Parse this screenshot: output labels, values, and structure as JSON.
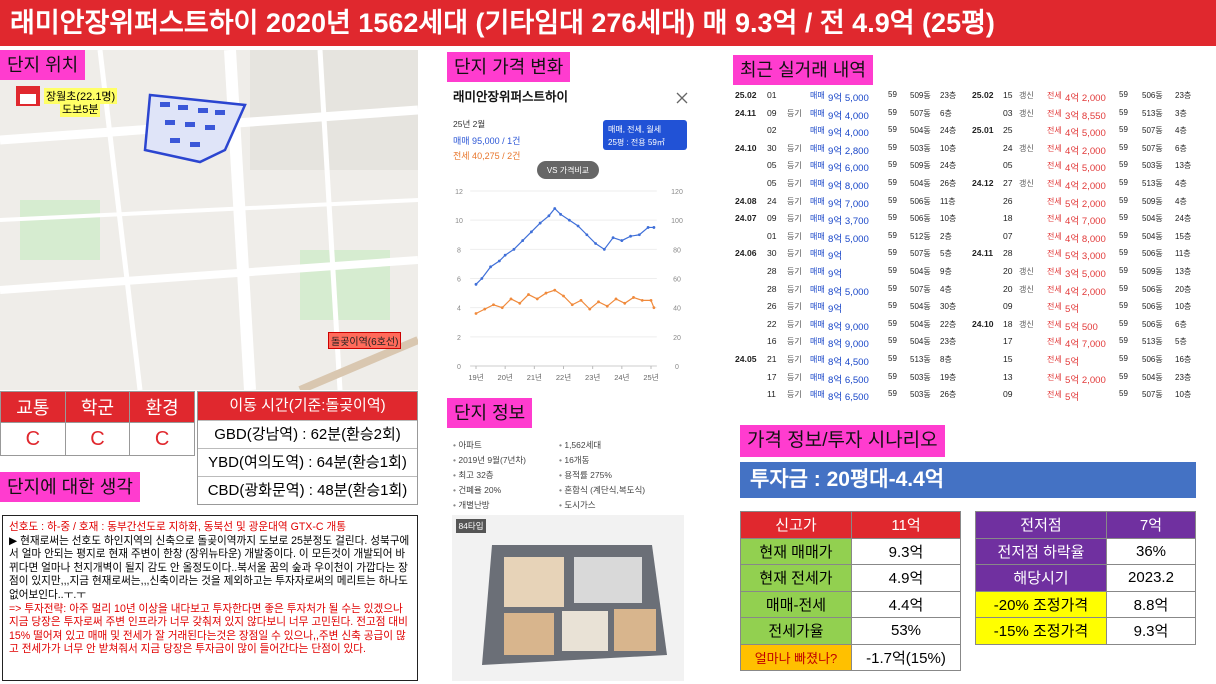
{
  "header": {
    "title": "래미안장위퍼스트하이 2020년 1562세대 (기타임대 276세대) 매 9.3억 / 전 4.9억 (25평)"
  },
  "location": {
    "label": "단지 위치",
    "school": "장월초(22.1명)",
    "walk": "도보5분",
    "station": "돌곶이역(6호선)"
  },
  "grades": {
    "headers": [
      "교통",
      "학군",
      "환경"
    ],
    "values": [
      "C",
      "C",
      "C"
    ]
  },
  "commute": {
    "title": "이동 시간(기준:돌곶이역)",
    "items": [
      "GBD(강남역) : 62분(환승2회)",
      "YBD(여의도역) : 64분(환승1회)",
      "CBD(광화문역) : 48분(환승1회)"
    ]
  },
  "thoughts": {
    "label": "단지에 대한 생각",
    "paragraphs": [
      {
        "text": "선호도 : 하-중 / 호재 : 동부간선도로 지하화, 동북선 및 광운대역 GTX-C 개통",
        "color": "#e00000"
      },
      {
        "text": "▶ 현재로써는 선호도 하인지역의 신축으로 돌곶이역까지 도보로 25분정도 걸린다. 성북구에서 얼마 안되는 평지로 현재 주변이 한창 (장위뉴타운) 개발중이다. 이 모든것이 개발되어 바뀌다면 얼마나 천지개벽이 될지 감도 안 올정도이다..북서울 꿈의 숲과 우이천이 가깝다는 장점이 있지만,,,지금 현재로써는,,,신축이라는 것을 제외하고는 투자자로써의 메리트는 하나도 없어보인다..ㅜ.ㅜ",
        "color": "#000000"
      },
      {
        "text": "=> 투자전략: 아주 멀리 10년 이상을 내다보고 투자한다면 좋은 투자처가 될 수는 있겠으나 지금 당장은 투자로써 주변 인프라가 너무 갖춰져 있지 않다보니 너무 고민된다. 전고점 대비 15% 떨어져 있고 매매 및 전세가 잘 거래된다는것은 장점일 수 있으나,,주변 신축 공급이 많고 전세가가 너무 안 받쳐줘서 지금 당장은 투자금이 많이 들어간다는 단점이 있다.",
        "color": "#e00000"
      }
    ]
  },
  "price_change": {
    "label": "단지 가격 변화",
    "name": "래미안장위퍼스트하이",
    "period": "25년 2월",
    "sale": "매매 95,000 / 1건",
    "jeonse": "전세 40,275 / 2건",
    "filter": "매매, 전세, 월세",
    "size": "25평 : 전용 59㎡",
    "compare": "VS 가격비교"
  },
  "chart_data": {
    "type": "line",
    "xlim": [
      2018.8,
      2025.2
    ],
    "xticks": [
      {
        "value": 2019,
        "label": "19년"
      },
      {
        "value": 2020,
        "label": "20년"
      },
      {
        "value": 2021,
        "label": "21년"
      },
      {
        "value": 2022,
        "label": "22년"
      },
      {
        "value": 2023,
        "label": "23년"
      },
      {
        "value": 2024,
        "label": "24년"
      },
      {
        "value": 2025,
        "label": "25년"
      }
    ],
    "ylim": [
      0,
      12
    ],
    "yticks": [
      0,
      2,
      4,
      6,
      8,
      10,
      12
    ],
    "y2lim": [
      0,
      120
    ],
    "y2ticks": [
      0,
      20,
      40,
      60,
      80,
      100,
      120
    ],
    "grid": true,
    "series": [
      {
        "name": "매매",
        "color": "#3f6fd8",
        "x": [
          2019.0,
          2019.2,
          2019.5,
          2019.8,
          2020.0,
          2020.3,
          2020.6,
          2020.9,
          2021.2,
          2021.5,
          2021.7,
          2021.9,
          2022.2,
          2022.5,
          2022.8,
          2023.1,
          2023.4,
          2023.7,
          2024.0,
          2024.3,
          2024.6,
          2024.9,
          2025.1
        ],
        "values": [
          5.6,
          6.0,
          6.8,
          7.2,
          7.6,
          8.0,
          8.6,
          9.2,
          9.8,
          10.3,
          10.8,
          10.4,
          10.0,
          9.6,
          9.0,
          8.4,
          8.0,
          8.8,
          8.6,
          8.9,
          9.0,
          9.5,
          9.5
        ]
      },
      {
        "name": "전세",
        "color": "#f08a3c",
        "x": [
          2019.0,
          2019.3,
          2019.6,
          2019.9,
          2020.2,
          2020.5,
          2020.8,
          2021.1,
          2021.4,
          2021.7,
          2022.0,
          2022.3,
          2022.6,
          2022.9,
          2023.2,
          2023.5,
          2023.8,
          2024.1,
          2024.4,
          2024.7,
          2025.0,
          2025.1
        ],
        "values": [
          3.6,
          3.9,
          4.2,
          4.0,
          4.6,
          4.3,
          4.9,
          4.6,
          5.0,
          5.2,
          4.8,
          4.2,
          4.5,
          3.9,
          4.4,
          4.1,
          4.6,
          4.3,
          4.7,
          4.5,
          4.5,
          4.0
        ]
      }
    ]
  },
  "info": {
    "label": "단지 정보",
    "left": [
      "아파트",
      "2019년 9월(7년차)",
      "최고 32층",
      "건폐율 20%",
      "개별난방"
    ],
    "right": [
      "1,562세대",
      "16개동",
      "용적률 275%",
      "혼합식 (계단식,복도식)",
      "도시가스"
    ],
    "plan": "84타입"
  },
  "deals": {
    "label": "최근 실거래 내역",
    "columns": [
      [
        [
          "25.02",
          "01",
          null,
          "매매",
          "9억 5,000",
          "59",
          "509동",
          "23층"
        ],
        [
          "24.11",
          "09",
          "등기",
          "매매",
          "9억 4,000",
          "59",
          "507동",
          "6층"
        ],
        [
          null,
          "02",
          null,
          "매매",
          "9억 4,000",
          "59",
          "504동",
          "24층"
        ],
        [
          "24.10",
          "30",
          "등기",
          "매매",
          "9억 2,800",
          "59",
          "503동",
          "10층"
        ],
        [
          null,
          "05",
          "등기",
          "매매",
          "9억 6,000",
          "59",
          "509동",
          "24층"
        ],
        [
          null,
          "05",
          "등기",
          "매매",
          "9억 8,000",
          "59",
          "504동",
          "26층"
        ],
        [
          "24.08",
          "24",
          "등기",
          "매매",
          "9억 7,000",
          "59",
          "506동",
          "11층"
        ],
        [
          "24.07",
          "09",
          "등기",
          "매매",
          "9억 3,700",
          "59",
          "506동",
          "10층"
        ],
        [
          null,
          "01",
          "등기",
          "매매",
          "8억 5,000",
          "59",
          "512동",
          "2층"
        ],
        [
          "24.06",
          "30",
          "등기",
          "매매",
          "9억",
          "59",
          "507동",
          "5층"
        ],
        [
          null,
          "28",
          "등기",
          "매매",
          "9억",
          "59",
          "504동",
          "9층"
        ],
        [
          null,
          "28",
          "등기",
          "매매",
          "8억 5,000",
          "59",
          "507동",
          "4층"
        ],
        [
          null,
          "26",
          "등기",
          "매매",
          "9억",
          "59",
          "504동",
          "30층"
        ],
        [
          null,
          "22",
          "등기",
          "매매",
          "8억 9,000",
          "59",
          "504동",
          "22층"
        ],
        [
          null,
          "16",
          "등기",
          "매매",
          "8억 9,000",
          "59",
          "504동",
          "23층"
        ],
        [
          "24.05",
          "21",
          "등기",
          "매매",
          "8억 4,500",
          "59",
          "513동",
          "8층"
        ],
        [
          null,
          "17",
          "등기",
          "매매",
          "8억 6,500",
          "59",
          "503동",
          "19층"
        ],
        [
          null,
          "11",
          "등기",
          "매매",
          "8억 6,500",
          "59",
          "503동",
          "26층"
        ]
      ],
      [
        [
          "25.02",
          "15",
          "갱신",
          "전세",
          "4억 2,000",
          "59",
          "506동",
          "23층"
        ],
        [
          null,
          "03",
          "갱신",
          "전세",
          "3억 8,550",
          "59",
          "513동",
          "3층"
        ],
        [
          "25.01",
          "25",
          null,
          "전세",
          "4억 5,000",
          "59",
          "507동",
          "4층"
        ],
        [
          null,
          "24",
          "갱신",
          "전세",
          "4억 2,000",
          "59",
          "507동",
          "6층"
        ],
        [
          null,
          "05",
          null,
          "전세",
          "4억 5,000",
          "59",
          "503동",
          "13층"
        ],
        [
          "24.12",
          "27",
          "갱신",
          "전세",
          "4억 2,000",
          "59",
          "513동",
          "4층"
        ],
        [
          null,
          "26",
          null,
          "전세",
          "5억 2,000",
          "59",
          "509동",
          "4층"
        ],
        [
          null,
          "18",
          null,
          "전세",
          "4억 7,000",
          "59",
          "504동",
          "24층"
        ],
        [
          null,
          "07",
          null,
          "전세",
          "4억 8,000",
          "59",
          "504동",
          "15층"
        ],
        [
          "24.11",
          "28",
          null,
          "전세",
          "5억 3,000",
          "59",
          "506동",
          "11층"
        ],
        [
          null,
          "20",
          "갱신",
          "전세",
          "3억 5,000",
          "59",
          "509동",
          "13층"
        ],
        [
          null,
          "20",
          "갱신",
          "전세",
          "4억 2,000",
          "59",
          "506동",
          "20층"
        ],
        [
          null,
          "09",
          null,
          "전세",
          "5억",
          "59",
          "506동",
          "10층"
        ],
        [
          "24.10",
          "18",
          "갱신",
          "전세",
          "5억 500",
          "59",
          "506동",
          "6층"
        ],
        [
          null,
          "17",
          null,
          "전세",
          "4억 7,000",
          "59",
          "513동",
          "5층"
        ],
        [
          null,
          "15",
          null,
          "전세",
          "5억",
          "59",
          "506동",
          "16층"
        ],
        [
          null,
          "13",
          null,
          "전세",
          "5억 2,000",
          "59",
          "504동",
          "23층"
        ],
        [
          null,
          "09",
          null,
          "전세",
          "5억",
          "59",
          "507동",
          "10층"
        ]
      ]
    ]
  },
  "scenario": {
    "label": "가격 정보/투자 시나리오",
    "banner": "투자금 : 20평대-4.4억",
    "left": [
      [
        "신고가",
        "11억"
      ],
      [
        "현재 매매가",
        "9.3억"
      ],
      [
        "현재 전세가",
        "4.9억"
      ],
      [
        "매매-전세",
        "4.4억"
      ],
      [
        "전세가율",
        "53%"
      ],
      [
        "얼마나 빠졌나?",
        "-1.7억(15%)"
      ]
    ],
    "right": [
      [
        "전저점",
        "7억"
      ],
      [
        "전저점 하락율",
        "36%"
      ],
      [
        "해당시기",
        "2023.2"
      ],
      [
        "-20% 조정가격",
        "8.8억"
      ],
      [
        "-15% 조정가격",
        "9.3억"
      ]
    ]
  }
}
